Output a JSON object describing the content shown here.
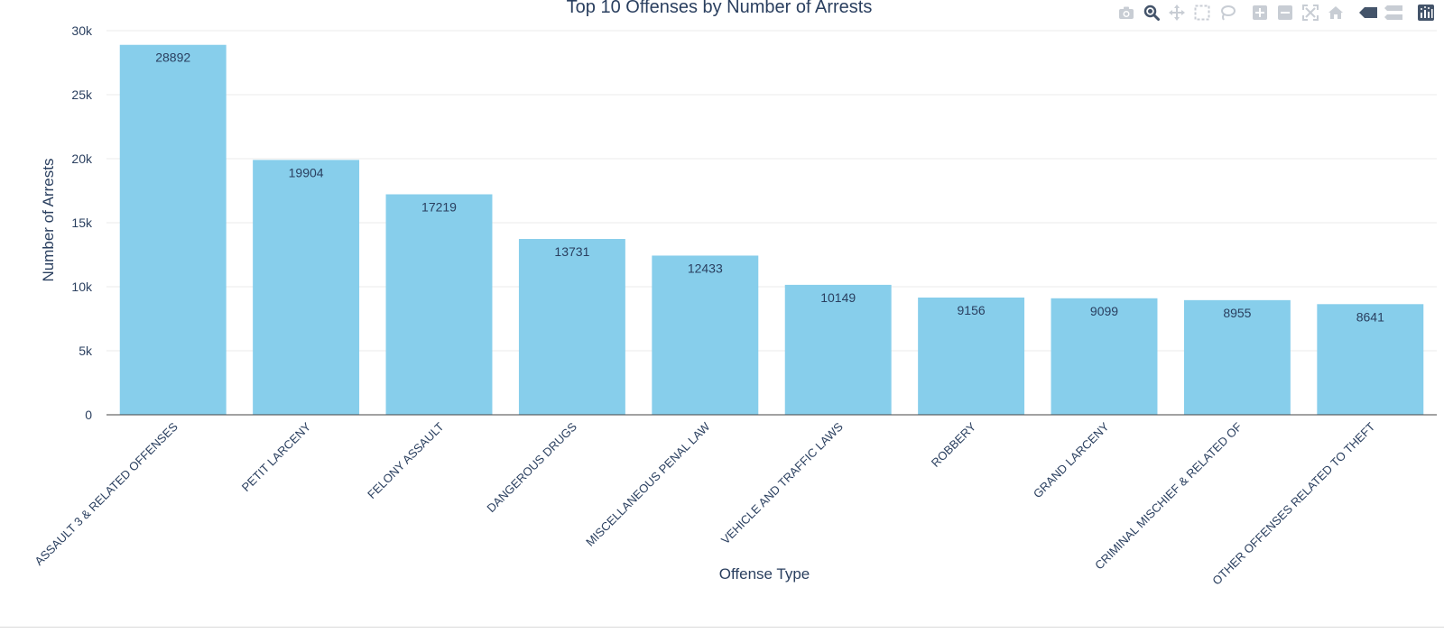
{
  "chart_data": {
    "type": "bar",
    "title": "Top 10 Offenses by Number of Arrests",
    "xlabel": "Offense Type",
    "ylabel": "Number of Arrests",
    "categories": [
      "ASSAULT 3 & RELATED OFFENSES",
      "PETIT LARCENY",
      "FELONY ASSAULT",
      "DANGEROUS DRUGS",
      "MISCELLANEOUS PENAL LAW",
      "VEHICLE AND TRAFFIC LAWS",
      "ROBBERY",
      "GRAND LARCENY",
      "CRIMINAL MISCHIEF & RELATED OF",
      "OTHER OFFENSES RELATED TO THEFT"
    ],
    "values": [
      28892,
      19904,
      17219,
      13731,
      12433,
      10149,
      9156,
      9099,
      8955,
      8641
    ],
    "ylim": [
      0,
      30000
    ],
    "yticks": [
      0,
      5000,
      10000,
      15000,
      20000,
      25000,
      30000
    ],
    "ytick_labels": [
      "0",
      "5k",
      "10k",
      "15k",
      "20k",
      "25k",
      "30k"
    ],
    "grid": true,
    "bar_color": "#87ceeb",
    "grid_color": "#ebebeb",
    "axis_color": "#444444",
    "text_color": "#2a3f5f"
  },
  "modebar": {
    "icons": [
      "camera-icon",
      "zoom-icon",
      "pan-icon",
      "box-select-icon",
      "lasso-icon",
      "zoom-in-icon",
      "zoom-out-icon",
      "autoscale-icon",
      "home-icon",
      "spike-lines-icon",
      "compare-hover-icon",
      "plotly-logo-icon"
    ],
    "icon_color": "#c8cdd4",
    "active_color": "#44546a"
  }
}
